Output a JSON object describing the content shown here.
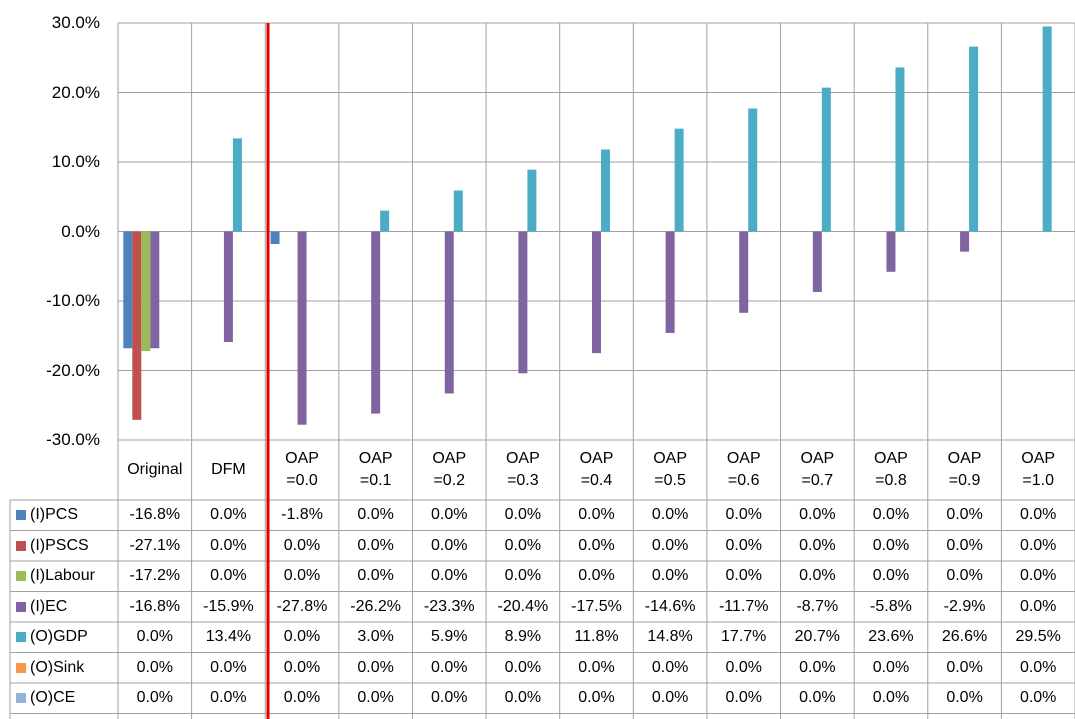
{
  "chart_data": {
    "type": "bar",
    "categories": [
      "Original",
      "DFM",
      "OAP =0.0",
      "OAP =0.1",
      "OAP =0.2",
      "OAP =0.3",
      "OAP =0.4",
      "OAP =0.5",
      "OAP =0.6",
      "OAP =0.7",
      "OAP =0.8",
      "OAP =0.9",
      "OAP =1.0"
    ],
    "series": [
      {
        "name": "(I)PCS",
        "color": "#4f81bd",
        "values": [
          -16.8,
          0,
          -1.8,
          0,
          0,
          0,
          0,
          0,
          0,
          0,
          0,
          0,
          0
        ],
        "value_labels": [
          "-16.8%",
          "0.0%",
          "-1.8%",
          "0.0%",
          "0.0%",
          "0.0%",
          "0.0%",
          "0.0%",
          "0.0%",
          "0.0%",
          "0.0%",
          "0.0%",
          "0.0%"
        ]
      },
      {
        "name": "(I)PSCS",
        "color": "#c0504d",
        "values": [
          -27.1,
          0,
          0,
          0,
          0,
          0,
          0,
          0,
          0,
          0,
          0,
          0,
          0
        ],
        "value_labels": [
          "-27.1%",
          "0.0%",
          "0.0%",
          "0.0%",
          "0.0%",
          "0.0%",
          "0.0%",
          "0.0%",
          "0.0%",
          "0.0%",
          "0.0%",
          "0.0%",
          "0.0%"
        ]
      },
      {
        "name": "(I)Labour",
        "color": "#9bbb59",
        "values": [
          -17.2,
          0,
          0,
          0,
          0,
          0,
          0,
          0,
          0,
          0,
          0,
          0,
          0
        ],
        "value_labels": [
          "-17.2%",
          "0.0%",
          "0.0%",
          "0.0%",
          "0.0%",
          "0.0%",
          "0.0%",
          "0.0%",
          "0.0%",
          "0.0%",
          "0.0%",
          "0.0%",
          "0.0%"
        ]
      },
      {
        "name": "(I)EC",
        "color": "#8064a2",
        "values": [
          -16.8,
          -15.9,
          -27.8,
          -26.2,
          -23.3,
          -20.4,
          -17.5,
          -14.6,
          -11.7,
          -8.7,
          -5.8,
          -2.9,
          0
        ],
        "value_labels": [
          "-16.8%",
          "-15.9%",
          "-27.8%",
          "-26.2%",
          "-23.3%",
          "-20.4%",
          "-17.5%",
          "-14.6%",
          "-11.7%",
          "-8.7%",
          "-5.8%",
          "-2.9%",
          "0.0%"
        ]
      },
      {
        "name": "(O)GDP",
        "color": "#4bacc6",
        "values": [
          0,
          13.4,
          0,
          3.0,
          5.9,
          8.9,
          11.8,
          14.8,
          17.7,
          20.7,
          23.6,
          26.6,
          29.5
        ],
        "value_labels": [
          "0.0%",
          "13.4%",
          "0.0%",
          "3.0%",
          "5.9%",
          "8.9%",
          "11.8%",
          "14.8%",
          "17.7%",
          "20.7%",
          "23.6%",
          "26.6%",
          "29.5%"
        ]
      },
      {
        "name": "(O)Sink",
        "color": "#f79646",
        "values": [
          0,
          0,
          0,
          0,
          0,
          0,
          0,
          0,
          0,
          0,
          0,
          0,
          0
        ],
        "value_labels": [
          "0.0%",
          "0.0%",
          "0.0%",
          "0.0%",
          "0.0%",
          "0.0%",
          "0.0%",
          "0.0%",
          "0.0%",
          "0.0%",
          "0.0%",
          "0.0%",
          "0.0%"
        ]
      },
      {
        "name": "(O)CE",
        "color": "#95b3d7",
        "values": [
          0,
          0,
          0,
          0,
          0,
          0,
          0,
          0,
          0,
          0,
          0,
          0,
          0
        ],
        "value_labels": [
          "0.0%",
          "0.0%",
          "0.0%",
          "0.0%",
          "0.0%",
          "0.0%",
          "0.0%",
          "0.0%",
          "0.0%",
          "0.0%",
          "0.0%",
          "0.0%",
          "0.0%"
        ]
      }
    ],
    "ylim": [
      -30,
      30
    ],
    "yticks": [
      {
        "value": -30,
        "label": "-30.0%"
      },
      {
        "value": -20,
        "label": "-20.0%"
      },
      {
        "value": -10,
        "label": "-10.0%"
      },
      {
        "value": 0,
        "label": "0.0%"
      },
      {
        "value": 10,
        "label": "10.0%"
      },
      {
        "value": 20,
        "label": "20.0%"
      },
      {
        "value": 30,
        "label": "30.0%"
      }
    ],
    "grid": true
  }
}
